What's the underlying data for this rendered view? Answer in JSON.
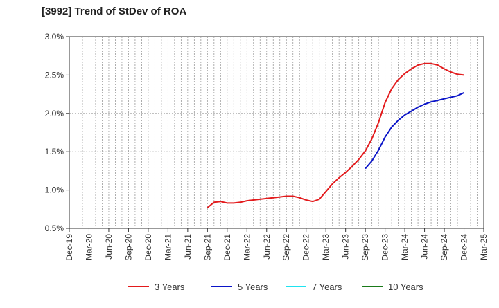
{
  "chart_data": {
    "type": "line",
    "title": "[3992]  Trend of StDev of ROA",
    "xlabel": "",
    "ylabel": "",
    "x_ticks": [
      "Dec-19",
      "Mar-20",
      "Jun-20",
      "Sep-20",
      "Dec-20",
      "Mar-21",
      "Jun-21",
      "Sep-21",
      "Dec-21",
      "Mar-22",
      "Jun-22",
      "Sep-22",
      "Dec-22",
      "Mar-23",
      "Jun-23",
      "Sep-23",
      "Dec-23",
      "Mar-24",
      "Jun-24",
      "Sep-24",
      "Dec-24",
      "Mar-25"
    ],
    "y_ticks": [
      "0.5%",
      "1.0%",
      "1.5%",
      "2.0%",
      "2.5%",
      "3.0%"
    ],
    "ylim": [
      0.5,
      3.0
    ],
    "grid": true,
    "legend_position": "bottom",
    "series": [
      {
        "name": "3 Years",
        "color": "#e31a1c",
        "x": [
          "Sep-21",
          "Oct-21",
          "Nov-21",
          "Dec-21",
          "Jan-22",
          "Feb-22",
          "Mar-22",
          "Apr-22",
          "May-22",
          "Jun-22",
          "Jul-22",
          "Aug-22",
          "Sep-22",
          "Oct-22",
          "Nov-22",
          "Dec-22",
          "Jan-23",
          "Feb-23",
          "Mar-23",
          "Apr-23",
          "May-23",
          "Jun-23",
          "Jul-23",
          "Aug-23",
          "Sep-23",
          "Oct-23",
          "Nov-23",
          "Dec-23",
          "Jan-24",
          "Feb-24",
          "Mar-24",
          "Apr-24",
          "May-24",
          "Jun-24",
          "Jul-24",
          "Aug-24",
          "Sep-24",
          "Oct-24",
          "Nov-24",
          "Dec-24"
        ],
        "values": [
          0.77,
          0.84,
          0.85,
          0.83,
          0.83,
          0.84,
          0.86,
          0.87,
          0.88,
          0.89,
          0.9,
          0.91,
          0.92,
          0.92,
          0.9,
          0.87,
          0.85,
          0.88,
          0.98,
          1.08,
          1.16,
          1.23,
          1.31,
          1.4,
          1.51,
          1.67,
          1.88,
          2.14,
          2.32,
          2.44,
          2.52,
          2.58,
          2.63,
          2.65,
          2.65,
          2.63,
          2.58,
          2.54,
          2.51,
          2.5
        ]
      },
      {
        "name": "5 Years",
        "color": "#0a14c8",
        "x": [
          "Sep-23",
          "Oct-23",
          "Nov-23",
          "Dec-23",
          "Jan-24",
          "Feb-24",
          "Mar-24",
          "Apr-24",
          "May-24",
          "Jun-24",
          "Jul-24",
          "Aug-24",
          "Sep-24",
          "Oct-24",
          "Nov-24",
          "Dec-24"
        ],
        "values": [
          1.28,
          1.38,
          1.52,
          1.69,
          1.82,
          1.91,
          1.98,
          2.03,
          2.08,
          2.12,
          2.15,
          2.17,
          2.19,
          2.21,
          2.23,
          2.27
        ]
      },
      {
        "name": "7 Years",
        "color": "#1fe3f0",
        "x": [],
        "values": []
      },
      {
        "name": "10 Years",
        "color": "#1a7a1a",
        "x": [],
        "values": []
      }
    ]
  }
}
